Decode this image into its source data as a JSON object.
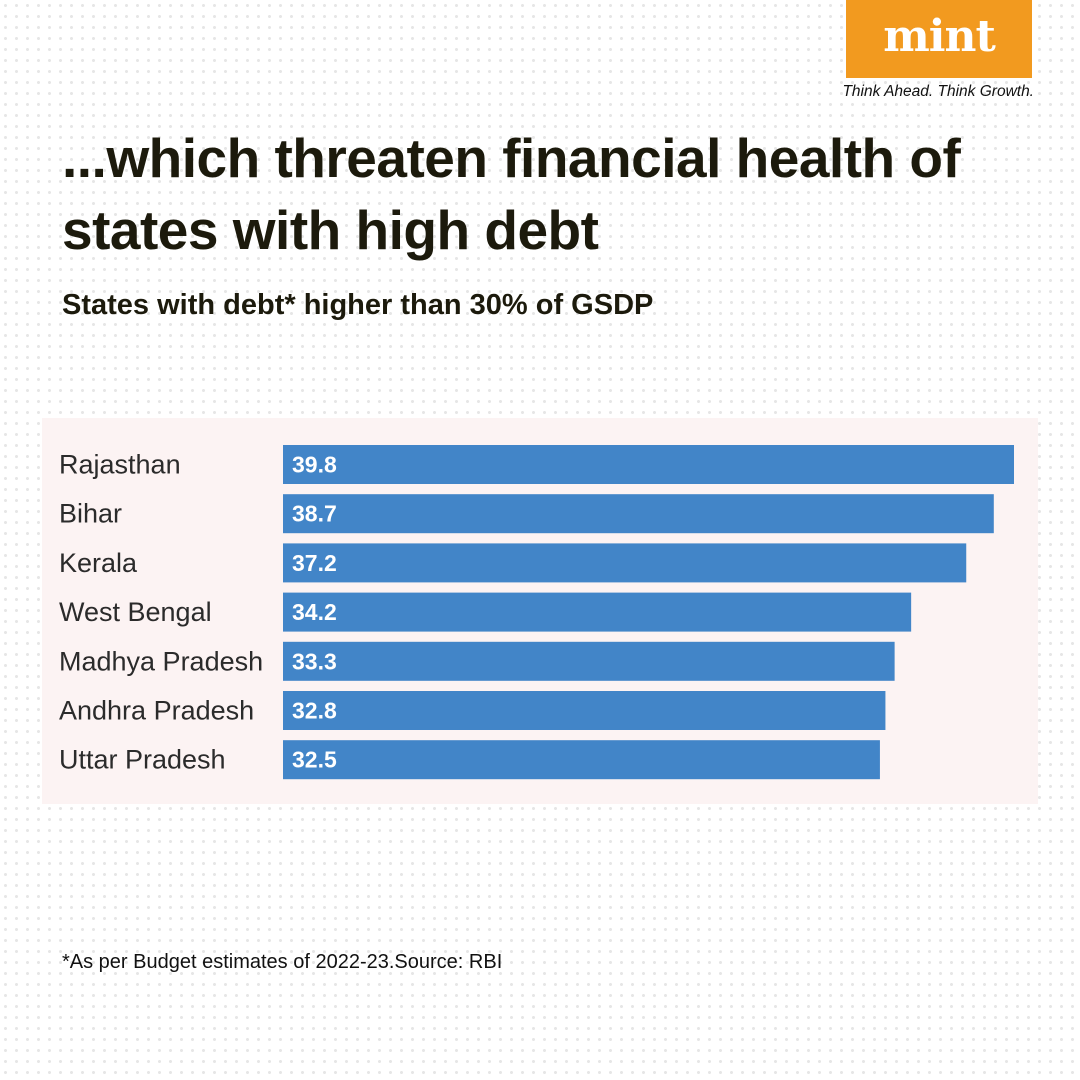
{
  "brand": {
    "logo": "mint",
    "tagline": "Think Ahead. Think Growth.",
    "logo_color": "#f29a1f"
  },
  "title": "...which threaten financial health of states with high debt",
  "subtitle": "States with debt* higher than 30% of GSDP",
  "footnote": "*As per Budget estimates of 2022-23.Source: RBI",
  "chart_data": {
    "type": "bar",
    "orientation": "horizontal",
    "categories": [
      "Rajasthan",
      "Bihar",
      "Kerala",
      "West Bengal",
      "Madhya Pradesh",
      "Andhra Pradesh",
      "Uttar Pradesh"
    ],
    "values": [
      39.8,
      38.7,
      37.2,
      34.2,
      33.3,
      32.8,
      32.5
    ],
    "data_labels": [
      "39.8",
      "38.7",
      "37.2",
      "34.2",
      "33.3",
      "32.8",
      "32.5"
    ],
    "xlim": [
      0,
      39.8
    ],
    "grid": false,
    "bar_color": "#4285c8",
    "background_color": "#fcf3f3"
  }
}
